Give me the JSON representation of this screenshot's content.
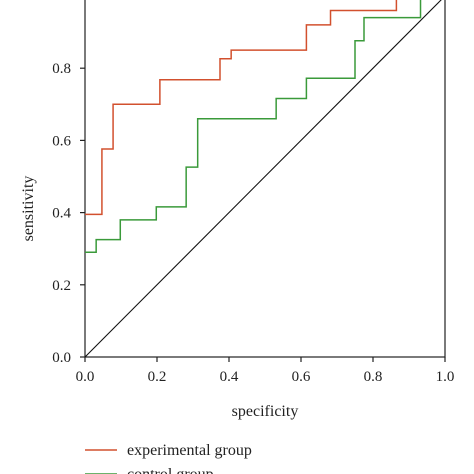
{
  "chart_data": {
    "type": "line",
    "xlabel": "specificity",
    "ylabel": "sensitivity",
    "xlim": [
      0,
      1
    ],
    "ylim": [
      0,
      1
    ],
    "xticks": [
      "0.0",
      "0.2",
      "0.4",
      "0.6",
      "0.8",
      "1.0"
    ],
    "yticks": [
      "0.0",
      "0.2",
      "0.4",
      "0.6",
      "0.8"
    ],
    "grid": false,
    "legend_position": "bottom",
    "series": [
      {
        "name": "experimental group",
        "color": "#d2502e",
        "step": true,
        "x": [
          0.0,
          0.047,
          0.047,
          0.078,
          0.078,
          0.208,
          0.208,
          0.375,
          0.375,
          0.406,
          0.406,
          0.615,
          0.615,
          0.682,
          0.682,
          0.865,
          0.865
        ],
        "y": [
          0.395,
          0.395,
          0.576,
          0.576,
          0.7,
          0.7,
          0.768,
          0.768,
          0.826,
          0.826,
          0.85,
          0.85,
          0.92,
          0.92,
          0.96,
          0.96,
          1.0
        ]
      },
      {
        "name": "control group",
        "color": "#3a9a3a",
        "step": true,
        "x": [
          0.0,
          0.031,
          0.031,
          0.098,
          0.098,
          0.198,
          0.198,
          0.281,
          0.281,
          0.313,
          0.313,
          0.531,
          0.531,
          0.615,
          0.615,
          0.75,
          0.75,
          0.775,
          0.775,
          0.932,
          0.932
        ],
        "y": [
          0.29,
          0.29,
          0.325,
          0.325,
          0.38,
          0.38,
          0.416,
          0.416,
          0.526,
          0.526,
          0.66,
          0.66,
          0.716,
          0.716,
          0.772,
          0.772,
          0.876,
          0.876,
          0.94,
          0.94,
          1.0
        ]
      },
      {
        "name": "",
        "color": "#111111",
        "step": false,
        "x": [
          0.0,
          1.0
        ],
        "y": [
          0.0,
          1.0
        ]
      }
    ]
  }
}
